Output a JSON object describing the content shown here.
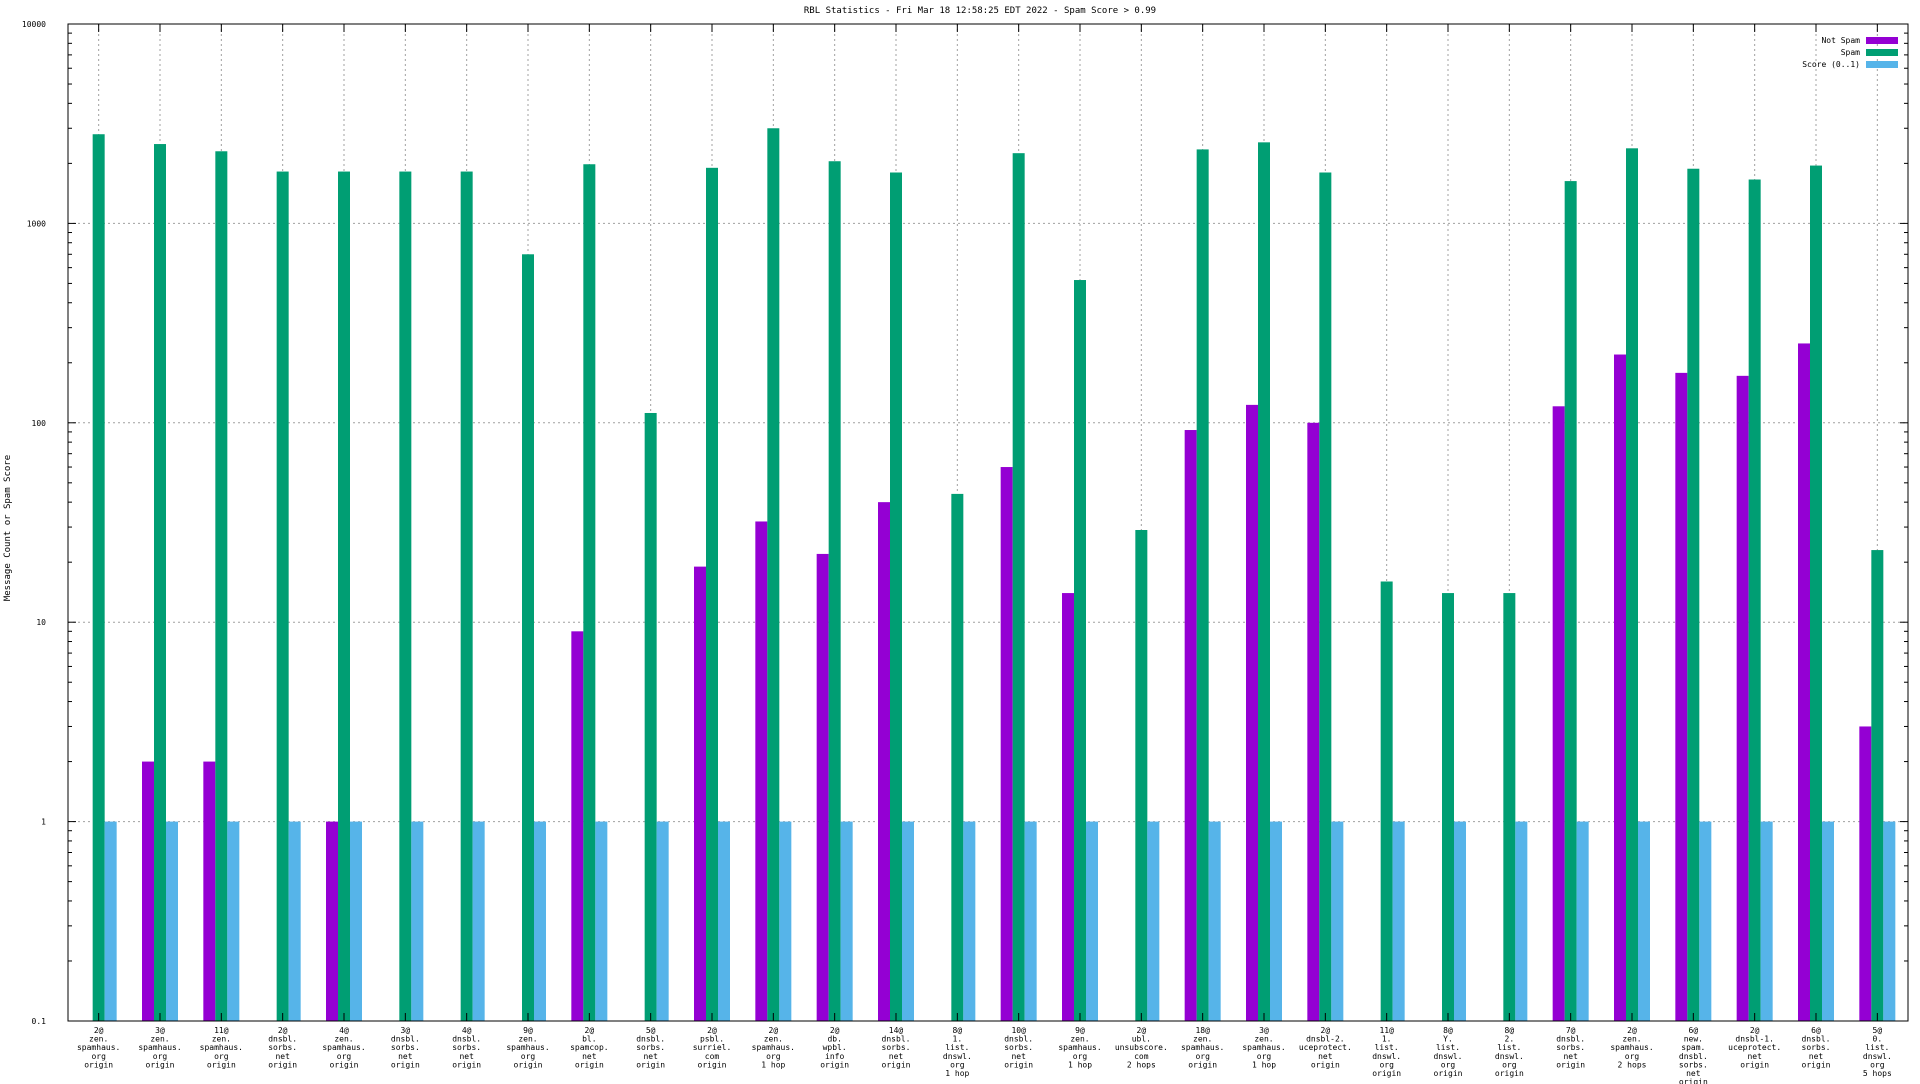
{
  "chart_data": {
    "type": "bar",
    "title": "RBL Statistics - Fri Mar 18 12:58:25 EDT 2022 - Spam Score > 0.99",
    "xlabel": "",
    "ylabel": "Message Count or Spam Score",
    "yscale": "log",
    "ylim": [
      0.1,
      10000
    ],
    "yticks": [
      "0.1",
      "1",
      "10",
      "100",
      "1000",
      "10000"
    ],
    "grid": true,
    "legend_position": "top-right",
    "categories": [
      "2@\nzen.\nspamhaus.\norg\norigin",
      "3@\nzen.\nspamhaus.\norg\norigin",
      "11@\nzen.\nspamhaus.\norg\norigin",
      "2@\ndnsbl.\nsorbs.\nnet\norigin",
      "4@\nzen.\nspamhaus.\norg\norigin",
      "3@\ndnsbl.\nsorbs.\nnet\norigin",
      "4@\ndnsbl.\nsorbs.\nnet\norigin",
      "9@\nzen.\nspamhaus.\norg\norigin",
      "2@\nbl.\nspamcop.\nnet\norigin",
      "5@\ndnsbl.\nsorbs.\nnet\norigin",
      "2@\npsbl.\nsurriel.\ncom\norigin",
      "2@\nzen.\nspamhaus.\norg\n1 hop",
      "2@\ndb.\nwpbl.\ninfo\norigin",
      "14@\ndnsbl.\nsorbs.\nnet\norigin",
      "8@\n1.\nlist.\ndnswl.\norg\n1 hop",
      "10@\ndnsbl.\nsorbs.\nnet\norigin",
      "9@\nzen.\nspamhaus.\norg\n1 hop",
      "2@\nubl.\nunsubscore.\ncom\n2 hops",
      "18@\nzen.\nspamhaus.\norg\norigin",
      "3@\nzen.\nspamhaus.\norg\n1 hop",
      "2@\ndnsbl-2.\nuceprotect.\nnet\norigin",
      "11@\n1.\nlist.\ndnswl.\norg\norigin",
      "8@\nY.\nlist.\ndnswl.\norg\norigin",
      "8@\n2.\nlist.\ndnswl.\norg\norigin",
      "7@\ndnsbl.\nsorbs.\nnet\norigin",
      "2@\nzen.\nspamhaus.\norg\n2 hops",
      "6@\nnew.\nspam.\ndnsbl.\nsorbs.\nnet\norigin",
      "2@\ndnsbl-1.\nuceprotect.\nnet\norigin",
      "6@\ndnsbl.\nsorbs.\nnet\norigin",
      "5@\n0.\nlist.\ndnswl.\norg\n5 hops"
    ],
    "series": [
      {
        "name": "Not Spam",
        "color": "#9400d3",
        "values": [
          null,
          2,
          2,
          null,
          1,
          null,
          null,
          null,
          9,
          null,
          19,
          32,
          22,
          40,
          null,
          60,
          14,
          null,
          92,
          123,
          100,
          null,
          null,
          null,
          121,
          220,
          178,
          172,
          250,
          3
        ]
      },
      {
        "name": "Spam",
        "color": "#009e73",
        "values": [
          2800,
          2500,
          2300,
          1820,
          1820,
          1820,
          1820,
          700,
          1980,
          112,
          1900,
          3000,
          2050,
          1800,
          44,
          2250,
          520,
          29,
          2350,
          2550,
          1800,
          16,
          14,
          14,
          1630,
          2380,
          1880,
          1660,
          1950,
          23
        ]
      },
      {
        "name": "Score (0..1)",
        "color": "#56b4e9",
        "values": [
          1,
          1,
          1,
          1,
          1,
          1,
          1,
          1,
          1,
          1,
          1,
          1,
          1,
          1,
          1,
          1,
          1,
          1,
          1,
          1,
          1,
          1,
          1,
          1,
          1,
          1,
          1,
          1,
          1,
          1
        ]
      }
    ]
  }
}
